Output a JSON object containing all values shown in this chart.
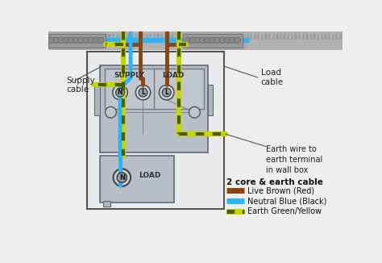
{
  "bg_color": "#f0eeec",
  "title": "2 core & earth cable",
  "legend_items": [
    {
      "label": "Live Brown (Red)",
      "color": "#8B4513",
      "style": "solid"
    },
    {
      "label": "Neutral Blue (Black)",
      "color": "#29b6f6",
      "style": "solid"
    },
    {
      "label": "Earth Green/Yellow",
      "color": "#c8d400",
      "style": "dash"
    }
  ],
  "supply_label": "Supply\ncable",
  "load_label": "Load\ncable",
  "earth_label": "Earth wire to\nearth terminal\nin wall box",
  "supply_terminal": "SUPPLY",
  "load_terminal": "LOAD",
  "switch_label": "LOAD",
  "switch_n_label": "N",
  "brown": "#8B4513",
  "blue": "#29b6f6",
  "green_y": "#c8d400",
  "green_dark": "#4a5c00",
  "cable_gray1": "#b0b0b0",
  "cable_gray2": "#909090",
  "device_body": "#b8bec6",
  "device_border": "#666870",
  "terminal_fill": "#9aa2aa",
  "wall_box_bg": "#e8eaec",
  "wall_box_border": "#555555",
  "ceiling_fill": "#b0b2b4",
  "ceiling_stripe": "#989a9c"
}
